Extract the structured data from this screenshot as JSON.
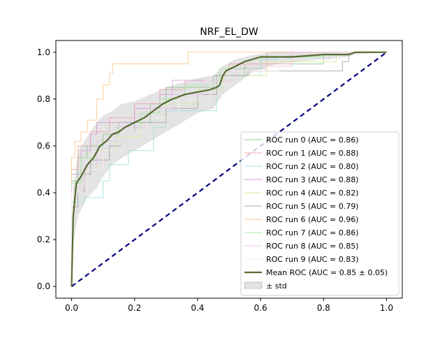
{
  "chart_data": {
    "type": "line",
    "title": "NRF_EL_DW",
    "xlabel": "",
    "ylabel": "",
    "xlim": [
      -0.05,
      1.05
    ],
    "ylim": [
      -0.05,
      1.05
    ],
    "xticks": [
      "0.0",
      "0.2",
      "0.4",
      "0.6",
      "0.8",
      "1.0"
    ],
    "yticks": [
      "0.0",
      "0.2",
      "0.4",
      "0.6",
      "0.8",
      "1.0"
    ],
    "grid": false,
    "legend_position": "lower-right",
    "series": [
      {
        "name": "ROC run 0 (AUC = 0.86)",
        "color": "#8fc98f",
        "points": [
          [
            0,
            0
          ],
          [
            0,
            0.45
          ],
          [
            0.02,
            0.45
          ],
          [
            0.02,
            0.55
          ],
          [
            0.05,
            0.55
          ],
          [
            0.05,
            0.6
          ],
          [
            0.1,
            0.6
          ],
          [
            0.1,
            0.65
          ],
          [
            0.15,
            0.65
          ],
          [
            0.15,
            0.7
          ],
          [
            0.25,
            0.7
          ],
          [
            0.25,
            0.78
          ],
          [
            0.3,
            0.78
          ],
          [
            0.3,
            0.85
          ],
          [
            0.45,
            0.85
          ],
          [
            0.45,
            0.9
          ],
          [
            0.55,
            0.9
          ],
          [
            0.55,
            0.95
          ],
          [
            0.8,
            0.95
          ],
          [
            0.8,
            1
          ],
          [
            1,
            1
          ]
        ]
      },
      {
        "name": "ROC run 1 (AUC = 0.88)",
        "color": "#f2a5a5",
        "points": [
          [
            0,
            0
          ],
          [
            0,
            0.5
          ],
          [
            0.02,
            0.5
          ],
          [
            0.02,
            0.6
          ],
          [
            0.06,
            0.6
          ],
          [
            0.06,
            0.66
          ],
          [
            0.12,
            0.66
          ],
          [
            0.12,
            0.72
          ],
          [
            0.2,
            0.72
          ],
          [
            0.2,
            0.78
          ],
          [
            0.28,
            0.78
          ],
          [
            0.28,
            0.84
          ],
          [
            0.36,
            0.84
          ],
          [
            0.36,
            0.88
          ],
          [
            0.5,
            0.88
          ],
          [
            0.5,
            0.95
          ],
          [
            0.7,
            0.95
          ],
          [
            0.7,
            1
          ],
          [
            1,
            1
          ]
        ]
      },
      {
        "name": "ROC run 2 (AUC = 0.80)",
        "color": "#9fe0e0",
        "points": [
          [
            0,
            0
          ],
          [
            0,
            0.36
          ],
          [
            0.04,
            0.36
          ],
          [
            0.04,
            0.38
          ],
          [
            0.1,
            0.38
          ],
          [
            0.1,
            0.45
          ],
          [
            0.12,
            0.45
          ],
          [
            0.12,
            0.52
          ],
          [
            0.18,
            0.52
          ],
          [
            0.18,
            0.58
          ],
          [
            0.26,
            0.58
          ],
          [
            0.26,
            0.68
          ],
          [
            0.3,
            0.68
          ],
          [
            0.3,
            0.75
          ],
          [
            0.46,
            0.75
          ],
          [
            0.46,
            0.85
          ],
          [
            0.48,
            0.85
          ],
          [
            0.48,
            0.9
          ],
          [
            0.6,
            0.9
          ],
          [
            0.6,
            0.97
          ],
          [
            0.82,
            0.97
          ],
          [
            0.82,
            1
          ],
          [
            1,
            1
          ]
        ]
      },
      {
        "name": "ROC run 3 (AUC = 0.88)",
        "color": "#d99bd9",
        "points": [
          [
            0,
            0
          ],
          [
            0,
            0.48
          ],
          [
            0.03,
            0.48
          ],
          [
            0.03,
            0.58
          ],
          [
            0.06,
            0.58
          ],
          [
            0.06,
            0.65
          ],
          [
            0.08,
            0.65
          ],
          [
            0.08,
            0.7
          ],
          [
            0.2,
            0.7
          ],
          [
            0.2,
            0.76
          ],
          [
            0.28,
            0.76
          ],
          [
            0.28,
            0.82
          ],
          [
            0.32,
            0.82
          ],
          [
            0.32,
            0.88
          ],
          [
            0.5,
            0.88
          ],
          [
            0.5,
            0.93
          ],
          [
            0.62,
            0.93
          ],
          [
            0.62,
            1
          ],
          [
            1,
            1
          ]
        ]
      },
      {
        "name": "ROC run 4 (AUC = 0.82)",
        "color": "#d8ec9a",
        "points": [
          [
            0,
            0
          ],
          [
            0,
            0.4
          ],
          [
            0.04,
            0.4
          ],
          [
            0.04,
            0.5
          ],
          [
            0.08,
            0.5
          ],
          [
            0.08,
            0.58
          ],
          [
            0.14,
            0.58
          ],
          [
            0.14,
            0.64
          ],
          [
            0.22,
            0.64
          ],
          [
            0.22,
            0.72
          ],
          [
            0.3,
            0.72
          ],
          [
            0.3,
            0.78
          ],
          [
            0.4,
            0.78
          ],
          [
            0.4,
            0.84
          ],
          [
            0.48,
            0.84
          ],
          [
            0.48,
            0.9
          ],
          [
            0.62,
            0.9
          ],
          [
            0.62,
            0.96
          ],
          [
            0.84,
            0.96
          ],
          [
            0.84,
            1
          ],
          [
            1,
            1
          ]
        ]
      },
      {
        "name": "ROC run 5 (AUC = 0.79)",
        "color": "#a6a6a6",
        "points": [
          [
            0,
            0
          ],
          [
            0,
            0.34
          ],
          [
            0.02,
            0.34
          ],
          [
            0.02,
            0.4
          ],
          [
            0.04,
            0.4
          ],
          [
            0.04,
            0.48
          ],
          [
            0.06,
            0.48
          ],
          [
            0.06,
            0.54
          ],
          [
            0.12,
            0.54
          ],
          [
            0.12,
            0.6
          ],
          [
            0.16,
            0.6
          ],
          [
            0.16,
            0.66
          ],
          [
            0.2,
            0.66
          ],
          [
            0.2,
            0.7
          ],
          [
            0.3,
            0.7
          ],
          [
            0.3,
            0.76
          ],
          [
            0.4,
            0.76
          ],
          [
            0.4,
            0.82
          ],
          [
            0.46,
            0.82
          ],
          [
            0.46,
            0.9
          ],
          [
            0.56,
            0.9
          ],
          [
            0.56,
            0.92
          ],
          [
            0.86,
            0.92
          ],
          [
            0.86,
            0.96
          ],
          [
            0.88,
            0.96
          ],
          [
            0.88,
            1
          ],
          [
            1,
            1
          ]
        ]
      },
      {
        "name": "ROC run 6 (AUC = 0.96)",
        "color": "#ffc68a",
        "points": [
          [
            0,
            0
          ],
          [
            0,
            0.55
          ],
          [
            0.01,
            0.55
          ],
          [
            0.01,
            0.62
          ],
          [
            0.03,
            0.62
          ],
          [
            0.03,
            0.66
          ],
          [
            0.05,
            0.66
          ],
          [
            0.05,
            0.71
          ],
          [
            0.08,
            0.71
          ],
          [
            0.08,
            0.8
          ],
          [
            0.1,
            0.8
          ],
          [
            0.1,
            0.86
          ],
          [
            0.12,
            0.86
          ],
          [
            0.12,
            0.91
          ],
          [
            0.13,
            0.91
          ],
          [
            0.13,
            0.95
          ],
          [
            0.37,
            0.95
          ],
          [
            0.37,
            1
          ],
          [
            1,
            1
          ]
        ]
      },
      {
        "name": "ROC run 7 (AUC = 0.86)",
        "color": "#a3e6a3",
        "points": [
          [
            0,
            0
          ],
          [
            0,
            0.44
          ],
          [
            0.03,
            0.44
          ],
          [
            0.03,
            0.55
          ],
          [
            0.08,
            0.55
          ],
          [
            0.08,
            0.62
          ],
          [
            0.14,
            0.62
          ],
          [
            0.14,
            0.68
          ],
          [
            0.22,
            0.68
          ],
          [
            0.22,
            0.74
          ],
          [
            0.28,
            0.74
          ],
          [
            0.28,
            0.8
          ],
          [
            0.36,
            0.8
          ],
          [
            0.36,
            0.86
          ],
          [
            0.47,
            0.86
          ],
          [
            0.47,
            0.93
          ],
          [
            0.6,
            0.93
          ],
          [
            0.6,
            0.98
          ],
          [
            0.8,
            0.98
          ],
          [
            0.8,
            1
          ],
          [
            1,
            1
          ]
        ]
      },
      {
        "name": "ROC run 8 (AUC = 0.85)",
        "color": "#f2c4f2",
        "points": [
          [
            0,
            0
          ],
          [
            0,
            0.42
          ],
          [
            0.04,
            0.42
          ],
          [
            0.04,
            0.52
          ],
          [
            0.08,
            0.52
          ],
          [
            0.08,
            0.62
          ],
          [
            0.14,
            0.62
          ],
          [
            0.14,
            0.68
          ],
          [
            0.24,
            0.68
          ],
          [
            0.24,
            0.76
          ],
          [
            0.32,
            0.76
          ],
          [
            0.32,
            0.82
          ],
          [
            0.42,
            0.82
          ],
          [
            0.42,
            0.88
          ],
          [
            0.52,
            0.88
          ],
          [
            0.52,
            0.94
          ],
          [
            0.7,
            0.94
          ],
          [
            0.7,
            1
          ],
          [
            1,
            1
          ]
        ]
      },
      {
        "name": "ROC run 9 (AUC = 0.83)",
        "color": "#fde7e7",
        "points": [
          [
            0,
            0
          ],
          [
            0,
            0.4
          ],
          [
            0.05,
            0.4
          ],
          [
            0.05,
            0.5
          ],
          [
            0.1,
            0.5
          ],
          [
            0.1,
            0.58
          ],
          [
            0.16,
            0.58
          ],
          [
            0.16,
            0.66
          ],
          [
            0.24,
            0.66
          ],
          [
            0.24,
            0.72
          ],
          [
            0.34,
            0.72
          ],
          [
            0.34,
            0.8
          ],
          [
            0.44,
            0.8
          ],
          [
            0.44,
            0.86
          ],
          [
            0.5,
            0.86
          ],
          [
            0.5,
            0.92
          ],
          [
            0.66,
            0.92
          ],
          [
            0.66,
            0.97
          ],
          [
            0.86,
            0.97
          ],
          [
            0.86,
            1
          ],
          [
            1,
            1
          ]
        ]
      }
    ],
    "mean": {
      "name": "Mean ROC (AUC = 0.85 ± 0.05)",
      "color": "#556b2f",
      "points": [
        [
          0,
          0
        ],
        [
          0.005,
          0.3
        ],
        [
          0.015,
          0.44
        ],
        [
          0.03,
          0.47
        ],
        [
          0.05,
          0.52
        ],
        [
          0.07,
          0.55
        ],
        [
          0.09,
          0.6
        ],
        [
          0.11,
          0.62
        ],
        [
          0.13,
          0.65
        ],
        [
          0.15,
          0.66
        ],
        [
          0.17,
          0.68
        ],
        [
          0.2,
          0.7
        ],
        [
          0.23,
          0.72
        ],
        [
          0.26,
          0.75
        ],
        [
          0.29,
          0.78
        ],
        [
          0.32,
          0.8
        ],
        [
          0.36,
          0.82
        ],
        [
          0.4,
          0.83
        ],
        [
          0.44,
          0.84
        ],
        [
          0.46,
          0.85
        ],
        [
          0.47,
          0.86
        ],
        [
          0.48,
          0.9
        ],
        [
          0.49,
          0.92
        ],
        [
          0.52,
          0.94
        ],
        [
          0.55,
          0.96
        ],
        [
          0.6,
          0.98
        ],
        [
          0.7,
          0.98
        ],
        [
          0.8,
          0.99
        ],
        [
          0.88,
          0.99
        ],
        [
          0.9,
          1
        ],
        [
          1,
          1
        ]
      ]
    },
    "std_band": {
      "name": "± std",
      "color": "#b0b0b0",
      "upper": [
        [
          0,
          0
        ],
        [
          0.005,
          0.42
        ],
        [
          0.02,
          0.58
        ],
        [
          0.05,
          0.64
        ],
        [
          0.08,
          0.7
        ],
        [
          0.1,
          0.73
        ],
        [
          0.13,
          0.75
        ],
        [
          0.16,
          0.78
        ],
        [
          0.2,
          0.79
        ],
        [
          0.25,
          0.82
        ],
        [
          0.3,
          0.85
        ],
        [
          0.35,
          0.87
        ],
        [
          0.4,
          0.89
        ],
        [
          0.45,
          0.9
        ],
        [
          0.48,
          0.94
        ],
        [
          0.52,
          0.97
        ],
        [
          0.58,
          0.99
        ],
        [
          0.65,
          1
        ],
        [
          1,
          1
        ]
      ],
      "lower": [
        [
          0,
          0
        ],
        [
          0.005,
          0.18
        ],
        [
          0.02,
          0.3
        ],
        [
          0.05,
          0.38
        ],
        [
          0.08,
          0.42
        ],
        [
          0.1,
          0.47
        ],
        [
          0.13,
          0.52
        ],
        [
          0.16,
          0.55
        ],
        [
          0.2,
          0.58
        ],
        [
          0.25,
          0.62
        ],
        [
          0.3,
          0.66
        ],
        [
          0.35,
          0.7
        ],
        [
          0.4,
          0.74
        ],
        [
          0.45,
          0.76
        ],
        [
          0.48,
          0.82
        ],
        [
          0.52,
          0.86
        ],
        [
          0.58,
          0.92
        ],
        [
          0.65,
          0.95
        ],
        [
          0.8,
          0.97
        ],
        [
          0.88,
          0.98
        ],
        [
          0.9,
          0.99
        ],
        [
          1,
          1
        ]
      ]
    },
    "chance": {
      "points": [
        [
          0,
          0
        ],
        [
          1,
          1
        ]
      ],
      "color": "#000080"
    }
  }
}
